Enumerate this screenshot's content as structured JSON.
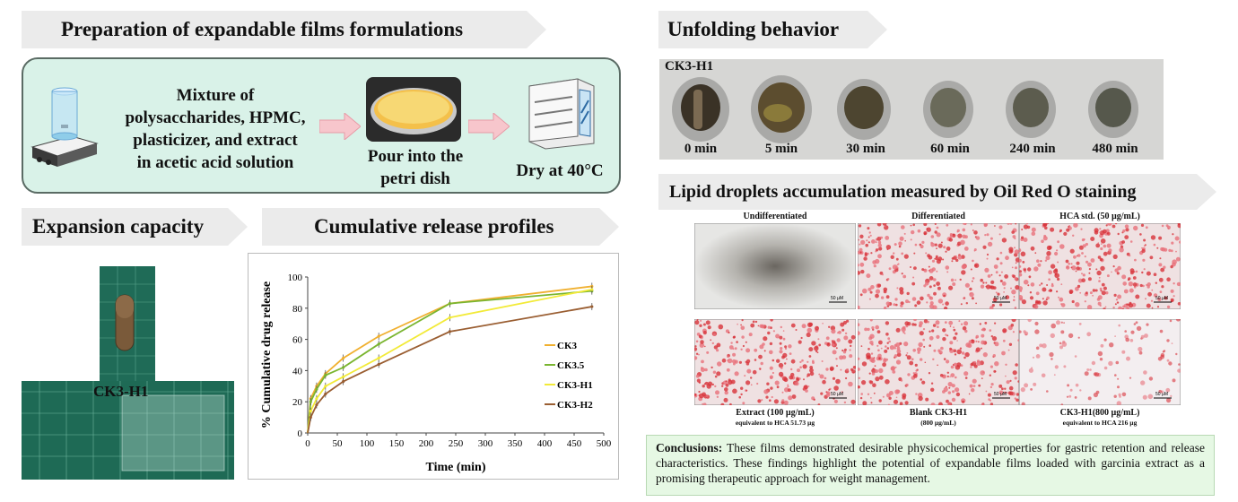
{
  "sections": {
    "prep_title": "Preparation of expandable films formulations",
    "unfold_title": "Unfolding behavior",
    "expansion_title": "Expansion capacity",
    "release_title": "Cumulative release profiles",
    "lipid_title": "Lipid droplets accumulation measured by Oil Red O staining"
  },
  "prep": {
    "mixture_lines": [
      "Mixture of",
      "polysaccharides, HPMC,",
      "plasticizer, and extract",
      "in acetic acid solution"
    ],
    "pour_lines": [
      "Pour into the",
      "petri dish"
    ],
    "dry": "Dry at 40°C"
  },
  "unfold": {
    "sample": "CK3-H1",
    "times": [
      "0 min",
      "5 min",
      "30 min",
      "60 min",
      "240 min",
      "480 min"
    ]
  },
  "expansion": {
    "sample": "CK3-H1"
  },
  "lipid": {
    "panels": [
      {
        "top": "Undifferentiated",
        "bottom": "",
        "sub": ""
      },
      {
        "top": "Differentiated",
        "bottom": "",
        "sub": ""
      },
      {
        "top": "HCA std. (50 µg/mL)",
        "bottom": "",
        "sub": ""
      },
      {
        "top": "",
        "bottom": "Extract (100 µg/mL)",
        "sub": "equivalent to HCA 51.73 µg"
      },
      {
        "top": "",
        "bottom": "Blank CK3-H1",
        "sub": "(800 µg/mL)"
      },
      {
        "top": "",
        "bottom": "CK3-H1(800 µg/mL)",
        "sub": "equivalent to HCA 216 µg"
      }
    ],
    "scale": "50 µM"
  },
  "conclusion": {
    "label": "Conclusions:",
    "text": " These films demonstrated desirable physicochemical properties for gastric retention and release characteristics. These findings highlight the potential of expandable films loaded with garcinia extract as a promising therapeutic approach for weight management."
  },
  "colors": {
    "banner": "#ebebeb",
    "prep_bg": "#d9f2e8",
    "arrow": "#f7c6cc",
    "concl_bg": "#e6f8e4"
  },
  "chart_data": {
    "type": "line",
    "xlabel": "Time (min)",
    "ylabel": "% Cumulative drug release",
    "xlim": [
      0,
      500
    ],
    "ylim": [
      0,
      100
    ],
    "xticks": [
      0,
      50,
      100,
      150,
      200,
      250,
      300,
      350,
      400,
      450,
      500
    ],
    "yticks": [
      0,
      20,
      40,
      60,
      80,
      100
    ],
    "x": [
      0,
      5,
      15,
      30,
      60,
      120,
      240,
      480
    ],
    "legend_position": "right",
    "series": [
      {
        "name": "CK3",
        "color": "#f0b030",
        "values": [
          0,
          22,
          30,
          38,
          48,
          62,
          83,
          94
        ]
      },
      {
        "name": "CK3.5",
        "color": "#7ab530",
        "values": [
          0,
          20,
          28,
          37,
          42,
          57,
          83,
          91
        ]
      },
      {
        "name": "CK3-H1",
        "color": "#f2ea38",
        "values": [
          0,
          14,
          22,
          30,
          36,
          48,
          74,
          92
        ]
      },
      {
        "name": "CK3-H2",
        "color": "#9a5e32",
        "values": [
          0,
          10,
          18,
          25,
          33,
          44,
          65,
          81
        ]
      }
    ]
  }
}
